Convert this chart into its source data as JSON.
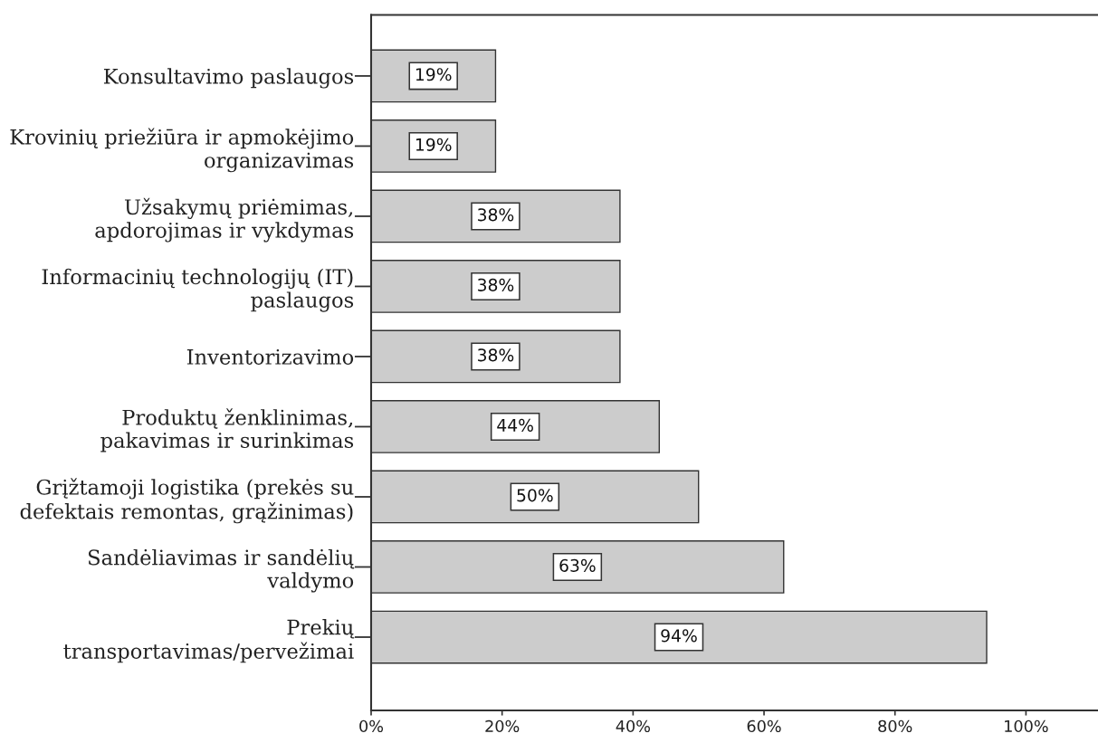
{
  "chart_data": {
    "type": "bar",
    "orientation": "horizontal",
    "categories": [
      "Konsultavimo paslaugos",
      "Krovinių priežiūra ir apmokėjimo\norganizavimas",
      "Užsakymų priėmimas,\napdorojimas ir vykdymas",
      "Informacinių technologijų (IT)\npaslaugos",
      "Inventorizavimo",
      "Produktų ženklinimas,\npakavimas ir surinkimas",
      "Grįžtamoji logistika (prekės su\ndefektais remontas, grąžinimas)",
      "Sandėliavimas ir sandėlių\nvaldymo",
      "Prekių\ntransportavimas/pervežimai"
    ],
    "values": [
      19,
      19,
      38,
      38,
      38,
      44,
      50,
      63,
      94
    ],
    "color": "#cccccc",
    "value_labels": [
      "19%",
      "19%",
      "38%",
      "38%",
      "38%",
      "44%",
      "50%",
      "63%",
      "94%"
    ],
    "xlim": [
      0,
      111
    ],
    "xticks": [
      {
        "value": 0,
        "label": "0%"
      },
      {
        "value": 20,
        "label": "20%"
      },
      {
        "value": 40,
        "label": "40%"
      },
      {
        "value": 60,
        "label": "60%"
      },
      {
        "value": 80,
        "label": "80%"
      },
      {
        "value": 100,
        "label": "100%"
      }
    ]
  }
}
